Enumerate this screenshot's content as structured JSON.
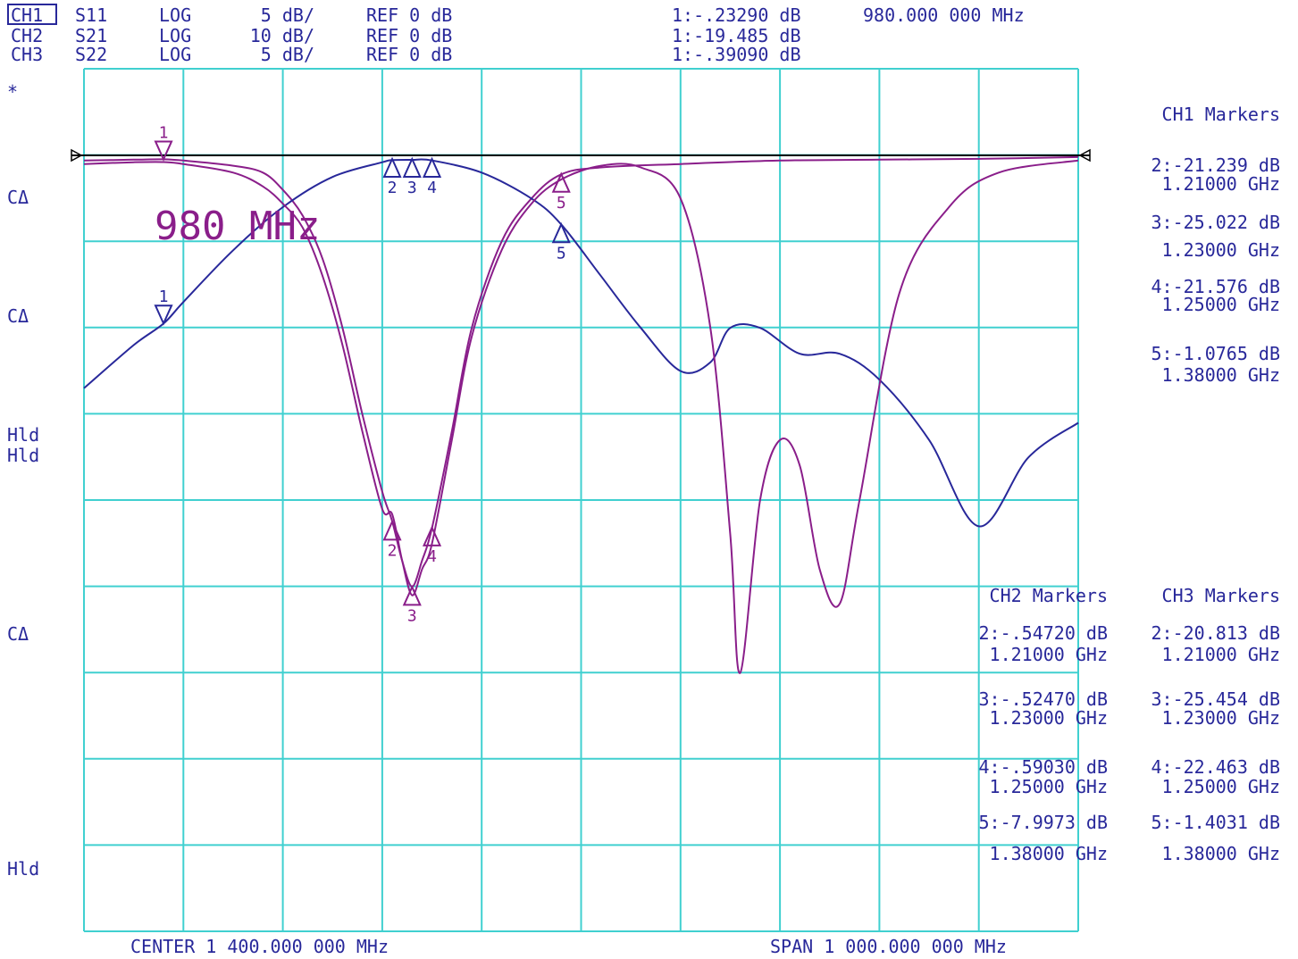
{
  "header": {
    "channels": [
      {
        "ch": "CH1",
        "param": "S11",
        "fmt": "LOG",
        "scale": "5 dB/",
        "ref": "REF  0  dB",
        "marker": "1:-.23290 dB",
        "color": "#8a1e8a"
      },
      {
        "ch": "CH2",
        "param": "S21",
        "fmt": "LOG",
        "scale": "10 dB/",
        "ref": "REF  0  dB",
        "marker": "1:-19.485 dB",
        "color": "#28289a"
      },
      {
        "ch": "CH3",
        "param": "S22",
        "fmt": "LOG",
        "scale": "5 dB/",
        "ref": "REF  0  dB",
        "marker": "1:-.39090 dB",
        "color": "#8a1e8a"
      }
    ],
    "marker1_freq": "980.000 000 MHz"
  },
  "left_annotations": {
    "star": "*",
    "ca1": "CΔ",
    "ca2": "CΔ",
    "hld1": "Hld",
    "hld2": "Hld",
    "ca3": "CΔ",
    "hld3": "Hld"
  },
  "annotation_text": "980 MHz",
  "ch1_markers": {
    "title": "CH1 Markers",
    "entries": [
      {
        "value": "2:-21.239 dB",
        "freq": "1.21000 GHz"
      },
      {
        "value": "3:-25.022 dB",
        "freq": "1.23000 GHz"
      },
      {
        "value": "4:-21.576 dB",
        "freq": "1.25000 GHz"
      },
      {
        "value": "5:-1.0765 dB",
        "freq": "1.38000 GHz"
      }
    ]
  },
  "ch2_markers": {
    "title": "CH2 Markers",
    "entries": [
      {
        "value": "2:-.54720 dB",
        "freq": "1.21000 GHz"
      },
      {
        "value": "3:-.52470 dB",
        "freq": "1.23000 GHz"
      },
      {
        "value": "4:-.59030 dB",
        "freq": "1.25000 GHz"
      },
      {
        "value": "5:-7.9973 dB",
        "freq": "1.38000 GHz"
      }
    ]
  },
  "ch3_markers": {
    "title": "CH3 Markers",
    "entries": [
      {
        "value": "2:-20.813 dB",
        "freq": "1.21000 GHz"
      },
      {
        "value": "3:-25.454 dB",
        "freq": "1.23000 GHz"
      },
      {
        "value": "4:-22.463 dB",
        "freq": "1.25000 GHz"
      },
      {
        "value": "5:-1.4031 dB",
        "freq": "1.38000 GHz"
      }
    ]
  },
  "footer": {
    "center": "CENTER 1 400.000 000 MHz",
    "span": "SPAN 1 000.000 000 MHz"
  },
  "colors": {
    "grid": "#40d0d0",
    "magenta": "#8a1e8a",
    "blue": "#28289a",
    "ref_line": "#000000"
  },
  "chart_data": {
    "type": "line",
    "x_unit": "GHz",
    "xlim": [
      0.9,
      1.9
    ],
    "series": [
      {
        "name": "S11",
        "color": "#8a1e8a",
        "y_unit": "dB",
        "ylim": [
          -50,
          0
        ],
        "x": [
          0.9,
          0.95,
          0.98,
          1.0,
          1.05,
          1.08,
          1.1,
          1.12,
          1.14,
          1.16,
          1.18,
          1.2,
          1.21,
          1.22,
          1.23,
          1.24,
          1.25,
          1.27,
          1.29,
          1.32,
          1.35,
          1.38,
          1.42,
          1.5,
          1.6,
          1.7,
          1.8,
          1.9
        ],
        "y": [
          -0.3,
          -0.25,
          -0.23,
          -0.3,
          -0.6,
          -1.0,
          -2.0,
          -3.5,
          -6,
          -10,
          -15,
          -19.5,
          -21.2,
          -23.5,
          -25.0,
          -23.5,
          -21.6,
          -16,
          -10,
          -5,
          -2.5,
          -1.1,
          -0.7,
          -0.5,
          -0.3,
          -0.25,
          -0.2,
          -0.1
        ]
      },
      {
        "name": "S21",
        "color": "#28289a",
        "y_unit": "dB",
        "ylim": [
          -100,
          0
        ],
        "x": [
          0.9,
          0.95,
          0.98,
          1.0,
          1.05,
          1.1,
          1.15,
          1.2,
          1.21,
          1.23,
          1.25,
          1.3,
          1.35,
          1.38,
          1.42,
          1.46,
          1.5,
          1.53,
          1.55,
          1.58,
          1.62,
          1.66,
          1.7,
          1.75,
          1.8,
          1.85,
          1.9
        ],
        "y": [
          -27,
          -22,
          -19.5,
          -17,
          -11,
          -6,
          -2.5,
          -0.8,
          -0.55,
          -0.52,
          -0.59,
          -2,
          -5,
          -8,
          -14,
          -20,
          -25,
          -24,
          -20,
          -20,
          -23,
          -23,
          -26,
          -33,
          -43,
          -35,
          -31
        ]
      },
      {
        "name": "S22",
        "color": "#8a1e8a",
        "y_unit": "dB",
        "ylim": [
          -50,
          0
        ],
        "x": [
          0.9,
          0.95,
          0.98,
          1.0,
          1.05,
          1.08,
          1.1,
          1.12,
          1.14,
          1.16,
          1.18,
          1.2,
          1.21,
          1.22,
          1.23,
          1.24,
          1.25,
          1.27,
          1.29,
          1.32,
          1.35,
          1.38,
          1.42,
          1.46,
          1.5,
          1.53,
          1.55,
          1.56,
          1.58,
          1.6,
          1.62,
          1.64,
          1.66,
          1.68,
          1.72,
          1.77,
          1.82,
          1.9
        ],
        "y": [
          -0.5,
          -0.4,
          -0.39,
          -0.5,
          -1.0,
          -1.8,
          -2.8,
          -4.2,
          -7,
          -11,
          -16,
          -20.5,
          -20.8,
          -23.5,
          -25.5,
          -24,
          -22.5,
          -16.5,
          -10.5,
          -5.5,
          -2.8,
          -1.4,
          -0.6,
          -0.7,
          -2.5,
          -10,
          -22,
          -30,
          -20,
          -16.5,
          -18,
          -24,
          -26,
          -20,
          -8,
          -3,
          -1,
          -0.3
        ]
      }
    ]
  }
}
